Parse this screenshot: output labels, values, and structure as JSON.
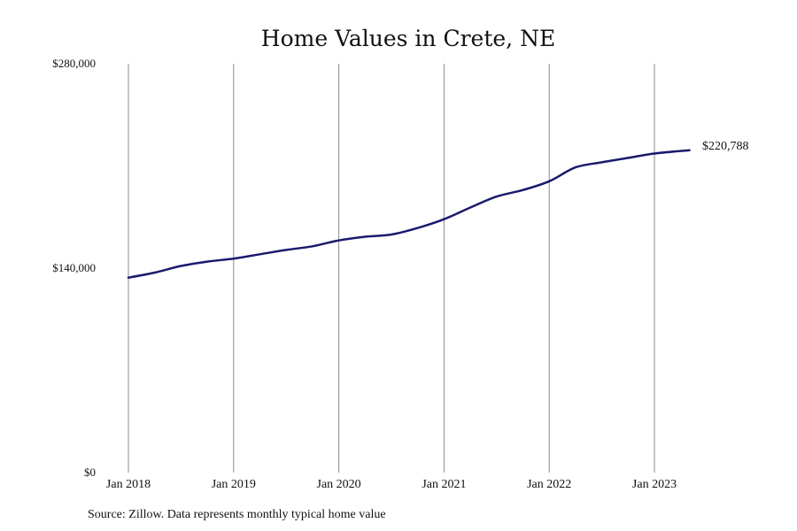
{
  "chart_data": {
    "type": "line",
    "title": "Home Values in Crete, NE",
    "xlabel": "",
    "ylabel": "",
    "source": "Source: Zillow. Data represents monthly typical home value",
    "x_ticks": [
      "Jan 2018",
      "Jan 2019",
      "Jan 2020",
      "Jan 2021",
      "Jan 2022",
      "Jan 2023"
    ],
    "y_ticks": [
      "$0",
      "$140,000",
      "$280,000"
    ],
    "ylim": [
      0,
      280000
    ],
    "xlim": [
      "2018-01",
      "2023-05"
    ],
    "grid": "vertical",
    "line_color": "#1a1a6e",
    "end_label": "$220,788",
    "series": [
      {
        "x": [
          "2018-01",
          "2018-04",
          "2018-07",
          "2018-10",
          "2019-01",
          "2019-04",
          "2019-07",
          "2019-10",
          "2020-01",
          "2020-04",
          "2020-07",
          "2020-10",
          "2021-01",
          "2021-04",
          "2021-07",
          "2021-10",
          "2022-01",
          "2022-04",
          "2022-07",
          "2022-10",
          "2023-01",
          "2023-05"
        ],
        "values": [
          133500,
          137000,
          141500,
          144500,
          146500,
          149500,
          152500,
          155000,
          159000,
          161500,
          163000,
          167500,
          173500,
          181500,
          189000,
          193500,
          199500,
          209000,
          212500,
          215500,
          218500,
          220788
        ]
      }
    ]
  }
}
